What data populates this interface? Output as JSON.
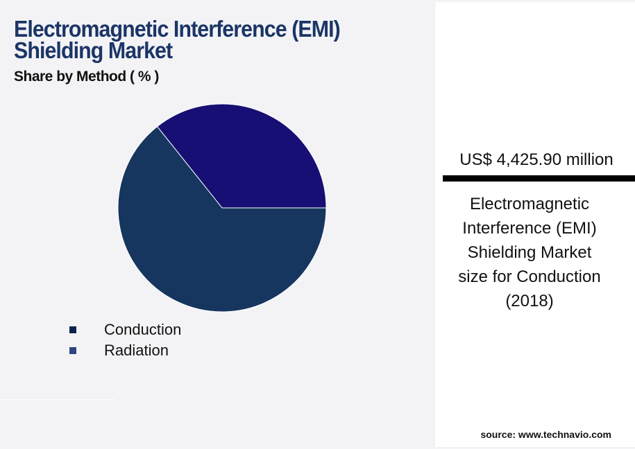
{
  "title": "Electromagnetic Interference (EMI) Shielding Market",
  "subtitle": "Share by Method ( % )",
  "chart_data": {
    "type": "pie",
    "title": "Electromagnetic Interference (EMI) Shielding Market",
    "subtitle": "Share by Method ( % )",
    "slices": [
      {
        "name": "Radiation",
        "value": 35.7,
        "color": "#170f73",
        "legend_color": "#2e4580"
      },
      {
        "name": "Conduction",
        "value": 64.3,
        "color": "#16365f",
        "legend_color": "#0f2350"
      }
    ],
    "legend": [
      "Conduction",
      "Radiation"
    ],
    "legend_placement": "bottom-left"
  },
  "callout": {
    "value": "US$ 4,425.90 million",
    "lines": [
      "Electromagnetic",
      "Interference (EMI)",
      "Shielding Market",
      "size for Conduction",
      "(2018)"
    ]
  },
  "source": "source: www.technavio.com"
}
